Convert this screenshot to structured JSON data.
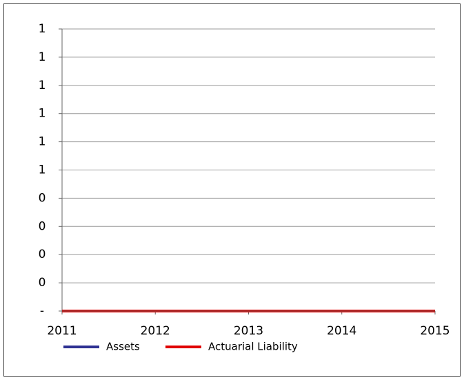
{
  "chart_data": {
    "type": "line",
    "x": [
      2011,
      2012,
      2013,
      2014,
      2015
    ],
    "xlim": [
      2011,
      2015
    ],
    "xticks": [
      2011,
      2012,
      2013,
      2014,
      2015
    ],
    "ylim": [
      0,
      1
    ],
    "yticks": [
      {
        "value": 0,
        "label": "-"
      },
      {
        "value": 0.1,
        "label": "0"
      },
      {
        "value": 0.2,
        "label": "0"
      },
      {
        "value": 0.3,
        "label": "0"
      },
      {
        "value": 0.4,
        "label": "0"
      },
      {
        "value": 0.5,
        "label": "1"
      },
      {
        "value": 0.6,
        "label": "1"
      },
      {
        "value": 0.7,
        "label": "1"
      },
      {
        "value": 0.8,
        "label": "1"
      },
      {
        "value": 0.9,
        "label": "1"
      },
      {
        "value": 1,
        "label": "1"
      }
    ],
    "grid": true,
    "legend": "bottom",
    "series": [
      {
        "name": "Assets",
        "color": "#2e3192",
        "values": [
          0,
          0,
          0,
          0,
          0
        ]
      },
      {
        "name": "Actuarial Liability",
        "color": "#e00000",
        "values": [
          0,
          0,
          0,
          0,
          0
        ]
      }
    ]
  }
}
